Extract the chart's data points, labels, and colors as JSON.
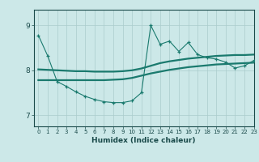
{
  "xlabel": "Humidex (Indice chaleur)",
  "xlim": [
    -0.5,
    23
  ],
  "ylim": [
    6.75,
    9.35
  ],
  "yticks": [
    7,
    8,
    9
  ],
  "xticks": [
    0,
    1,
    2,
    3,
    4,
    5,
    6,
    7,
    8,
    9,
    10,
    11,
    12,
    13,
    14,
    15,
    16,
    17,
    18,
    19,
    20,
    21,
    22,
    23
  ],
  "bg_color": "#cce8e8",
  "line_color": "#1a7a6e",
  "grid_color": "#aacccc",
  "line1_x": [
    0,
    1,
    2,
    3,
    4,
    5,
    6,
    7,
    8,
    9,
    10,
    11,
    12,
    13,
    14,
    15,
    16,
    17,
    18,
    19,
    20,
    21,
    22,
    23
  ],
  "line1_y": [
    8.78,
    8.32,
    7.75,
    7.64,
    7.52,
    7.42,
    7.35,
    7.3,
    7.28,
    7.28,
    7.32,
    7.5,
    9.0,
    8.58,
    8.65,
    8.42,
    8.62,
    8.35,
    8.28,
    8.25,
    8.18,
    8.05,
    8.1,
    8.22
  ],
  "line2_x": [
    0,
    1,
    2,
    3,
    4,
    5,
    6,
    7,
    8,
    9,
    10,
    11,
    12,
    13,
    14,
    15,
    16,
    17,
    18,
    19,
    20,
    21,
    22,
    23
  ],
  "line2_y": [
    8.02,
    8.01,
    8.0,
    7.99,
    7.98,
    7.98,
    7.97,
    7.97,
    7.97,
    7.98,
    8.0,
    8.04,
    8.1,
    8.16,
    8.2,
    8.23,
    8.26,
    8.28,
    8.3,
    8.32,
    8.33,
    8.34,
    8.34,
    8.35
  ],
  "line3_x": [
    0,
    1,
    2,
    3,
    4,
    5,
    6,
    7,
    8,
    9,
    10,
    11,
    12,
    13,
    14,
    15,
    16,
    17,
    18,
    19,
    20,
    21,
    22,
    23
  ],
  "line3_y": [
    7.78,
    7.78,
    7.78,
    7.78,
    7.78,
    7.78,
    7.78,
    7.78,
    7.79,
    7.8,
    7.83,
    7.88,
    7.93,
    7.97,
    8.01,
    8.04,
    8.07,
    8.09,
    8.11,
    8.13,
    8.14,
    8.15,
    8.16,
    8.17
  ]
}
